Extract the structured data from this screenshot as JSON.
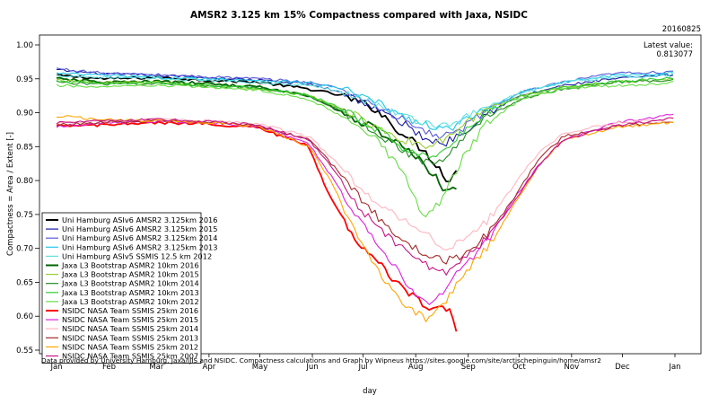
{
  "chart_data": {
    "type": "line",
    "title": "AMSR2 3.125 km 15% Compactness compared with Jaxa, NSIDC",
    "date_stamp": "20160825",
    "latest_value_label": "Latest value:",
    "latest_value": "0.813077",
    "xlabel": "day",
    "ylabel": "Compactness = Area / Extent [-]",
    "ylim": [
      0.55,
      1.0
    ],
    "yticks": [
      "0.55",
      "0.60",
      "0.65",
      "0.70",
      "0.75",
      "0.80",
      "0.85",
      "0.90",
      "0.95",
      "1.00"
    ],
    "months": [
      "Jan",
      "Feb",
      "Mar",
      "Apr",
      "May",
      "Jun",
      "Jul",
      "Aug",
      "Sep",
      "Oct",
      "Nov",
      "Dec",
      "Jan"
    ],
    "credit": "Data provided by University Hamburg, Jaxa/IJIS and NSIDC. Compactness calculations and Graph by Wipneus https://sites.google.com/site/arctischepinguin/home/amsr2",
    "grid": false,
    "legend_position": "bottom-left",
    "series": [
      {
        "name": "Uni Hamburg ASIv6 AMSR2 3.125km 2016",
        "color": "#000000",
        "x": [
          1,
          30,
          60,
          90,
          120,
          150,
          170,
          190,
          200,
          215,
          225,
          232,
          238
        ],
        "y": [
          0.955,
          0.95,
          0.952,
          0.948,
          0.945,
          0.935,
          0.925,
          0.905,
          0.88,
          0.85,
          0.825,
          0.8,
          0.813
        ]
      },
      {
        "name": "Uni Hamburg ASIv6 AMSR2 3.125km 2015",
        "color": "#1a1aa0",
        "x": [
          1,
          30,
          60,
          90,
          120,
          150,
          170,
          190,
          205,
          220,
          230,
          240,
          255,
          275,
          300,
          330,
          360,
          366
        ],
        "y": [
          0.963,
          0.957,
          0.955,
          0.952,
          0.948,
          0.942,
          0.93,
          0.905,
          0.885,
          0.86,
          0.855,
          0.87,
          0.9,
          0.925,
          0.94,
          0.95,
          0.955,
          0.955
        ]
      },
      {
        "name": "Uni Hamburg ASIv6 AMSR2 3.125km 2014",
        "color": "#5a5ad8",
        "x": [
          1,
          30,
          60,
          90,
          120,
          150,
          170,
          190,
          205,
          220,
          230,
          240,
          255,
          275,
          300,
          330,
          360,
          366
        ],
        "y": [
          0.965,
          0.958,
          0.956,
          0.953,
          0.95,
          0.945,
          0.935,
          0.91,
          0.89,
          0.87,
          0.865,
          0.875,
          0.905,
          0.93,
          0.945,
          0.958,
          0.96,
          0.962
        ]
      },
      {
        "name": "Uni Hamburg ASIv6 AMSR2 3.125km 2013",
        "color": "#20c8e8",
        "x": [
          1,
          30,
          60,
          90,
          120,
          150,
          170,
          190,
          205,
          220,
          230,
          240,
          255,
          275,
          300,
          330,
          360,
          366
        ],
        "y": [
          0.958,
          0.955,
          0.952,
          0.95,
          0.948,
          0.944,
          0.935,
          0.915,
          0.895,
          0.88,
          0.875,
          0.885,
          0.905,
          0.93,
          0.945,
          0.955,
          0.958,
          0.96
        ]
      },
      {
        "name": "Uni Hamburg ASIv5 SSMIS 12.5 km 2012",
        "color": "#60e0e0",
        "x": [
          1,
          30,
          60,
          90,
          120,
          150,
          170,
          190,
          205,
          220,
          230,
          240,
          255,
          275,
          300,
          330,
          360,
          366
        ],
        "y": [
          0.955,
          0.952,
          0.95,
          0.948,
          0.945,
          0.94,
          0.932,
          0.912,
          0.895,
          0.885,
          0.88,
          0.89,
          0.908,
          0.93,
          0.945,
          0.952,
          0.955,
          0.957
        ]
      },
      {
        "name": "Jaxa L3 Bootstrap ASMR2 10km 2016",
        "color": "#006400",
        "x": [
          1,
          30,
          60,
          90,
          120,
          150,
          170,
          190,
          205,
          215,
          225,
          232,
          238
        ],
        "y": [
          0.95,
          0.945,
          0.946,
          0.943,
          0.938,
          0.925,
          0.9,
          0.875,
          0.85,
          0.83,
          0.805,
          0.78,
          0.79
        ]
      },
      {
        "name": "Jaxa L3 Bootstrap ASMR2 10km 2015",
        "color": "#9acd32",
        "x": [
          1,
          30,
          60,
          90,
          120,
          150,
          170,
          190,
          205,
          220,
          230,
          240,
          255,
          275,
          300,
          330,
          360,
          366
        ],
        "y": [
          0.948,
          0.944,
          0.945,
          0.94,
          0.935,
          0.925,
          0.905,
          0.88,
          0.86,
          0.85,
          0.86,
          0.88,
          0.905,
          0.925,
          0.938,
          0.945,
          0.948,
          0.95
        ]
      },
      {
        "name": "Jaxa L3 Bootstrap ASMR2 10km 2014",
        "color": "#228b22",
        "x": [
          1,
          30,
          60,
          90,
          120,
          150,
          170,
          190,
          205,
          220,
          230,
          240,
          255,
          275,
          300,
          330,
          360,
          366
        ],
        "y": [
          0.945,
          0.942,
          0.943,
          0.94,
          0.936,
          0.925,
          0.902,
          0.87,
          0.845,
          0.825,
          0.83,
          0.86,
          0.895,
          0.92,
          0.935,
          0.945,
          0.948,
          0.95
        ]
      },
      {
        "name": "Jaxa L3 Bootstrap ASMR2 10km 2013",
        "color": "#32cd32",
        "x": [
          1,
          30,
          60,
          90,
          120,
          150,
          170,
          190,
          205,
          220,
          230,
          240,
          255,
          275,
          300,
          330,
          360,
          366
        ],
        "y": [
          0.946,
          0.943,
          0.944,
          0.941,
          0.936,
          0.926,
          0.905,
          0.875,
          0.85,
          0.835,
          0.845,
          0.87,
          0.9,
          0.925,
          0.938,
          0.946,
          0.95,
          0.952
        ]
      },
      {
        "name": "Jaxa L3 Bootstrap ASMR2 10km 2012",
        "color": "#66dd44",
        "x": [
          1,
          30,
          60,
          90,
          120,
          150,
          170,
          190,
          200,
          210,
          218,
          228,
          240,
          255,
          275,
          300,
          330,
          360,
          366
        ],
        "y": [
          0.94,
          0.938,
          0.94,
          0.938,
          0.933,
          0.92,
          0.895,
          0.86,
          0.83,
          0.79,
          0.745,
          0.77,
          0.83,
          0.885,
          0.92,
          0.935,
          0.94,
          0.942,
          0.945
        ]
      },
      {
        "name": "NSIDC NASA Team SSMIS 25km 2016",
        "color": "#ff0000",
        "x": [
          1,
          30,
          60,
          90,
          120,
          150,
          160,
          175,
          190,
          200,
          210,
          220,
          228,
          234,
          238
        ],
        "y": [
          0.88,
          0.882,
          0.885,
          0.884,
          0.878,
          0.85,
          0.79,
          0.72,
          0.68,
          0.655,
          0.63,
          0.615,
          0.61,
          0.608,
          0.575
        ]
      },
      {
        "name": "NSIDC NASA Team SSMIS 25km 2015",
        "color": "#e020e0",
        "x": [
          1,
          30,
          60,
          90,
          120,
          150,
          165,
          180,
          195,
          210,
          220,
          230,
          240,
          255,
          270,
          285,
          300,
          330,
          360,
          366
        ],
        "y": [
          0.88,
          0.885,
          0.887,
          0.886,
          0.88,
          0.855,
          0.8,
          0.74,
          0.69,
          0.64,
          0.615,
          0.64,
          0.67,
          0.71,
          0.77,
          0.82,
          0.86,
          0.885,
          0.895,
          0.898
        ]
      },
      {
        "name": "NSIDC NASA Team SSMIS 25km 2014",
        "color": "#ffb6c1",
        "x": [
          1,
          30,
          60,
          90,
          120,
          150,
          165,
          180,
          195,
          210,
          220,
          230,
          240,
          255,
          270,
          285,
          300,
          330,
          360,
          366
        ],
        "y": [
          0.885,
          0.888,
          0.89,
          0.888,
          0.884,
          0.865,
          0.83,
          0.79,
          0.76,
          0.735,
          0.72,
          0.7,
          0.71,
          0.74,
          0.79,
          0.84,
          0.87,
          0.885,
          0.89,
          0.892
        ]
      },
      {
        "name": "NSIDC NASA Team SSMIS 25km 2013",
        "color": "#a52a2a",
        "x": [
          1,
          30,
          60,
          90,
          120,
          150,
          165,
          180,
          195,
          210,
          220,
          230,
          240,
          255,
          270,
          285,
          300,
          330,
          360,
          366
        ],
        "y": [
          0.882,
          0.886,
          0.888,
          0.886,
          0.881,
          0.86,
          0.82,
          0.775,
          0.735,
          0.705,
          0.69,
          0.68,
          0.69,
          0.72,
          0.77,
          0.83,
          0.865,
          0.88,
          0.886,
          0.888
        ]
      },
      {
        "name": "NSIDC NASA Team SSMIS 25km 2012",
        "color": "#ffa500",
        "x": [
          1,
          30,
          60,
          90,
          120,
          150,
          165,
          180,
          195,
          210,
          220,
          230,
          240,
          255,
          270,
          285,
          300,
          330,
          360,
          366
        ],
        "y": [
          0.895,
          0.89,
          0.888,
          0.886,
          0.88,
          0.85,
          0.79,
          0.71,
          0.65,
          0.61,
          0.595,
          0.62,
          0.66,
          0.7,
          0.76,
          0.82,
          0.86,
          0.878,
          0.885,
          0.885
        ]
      },
      {
        "name": "NSIDC NASA Team SSMIS 25km 2007",
        "color": "#c71585",
        "x": [
          1,
          30,
          60,
          90,
          120,
          150,
          165,
          180,
          195,
          210,
          220,
          230,
          240,
          255,
          270,
          285,
          300,
          330,
          360,
          366
        ],
        "y": [
          0.885,
          0.888,
          0.89,
          0.887,
          0.882,
          0.86,
          0.815,
          0.76,
          0.72,
          0.69,
          0.675,
          0.665,
          0.68,
          0.715,
          0.765,
          0.82,
          0.86,
          0.88,
          0.89,
          0.892
        ]
      }
    ]
  }
}
